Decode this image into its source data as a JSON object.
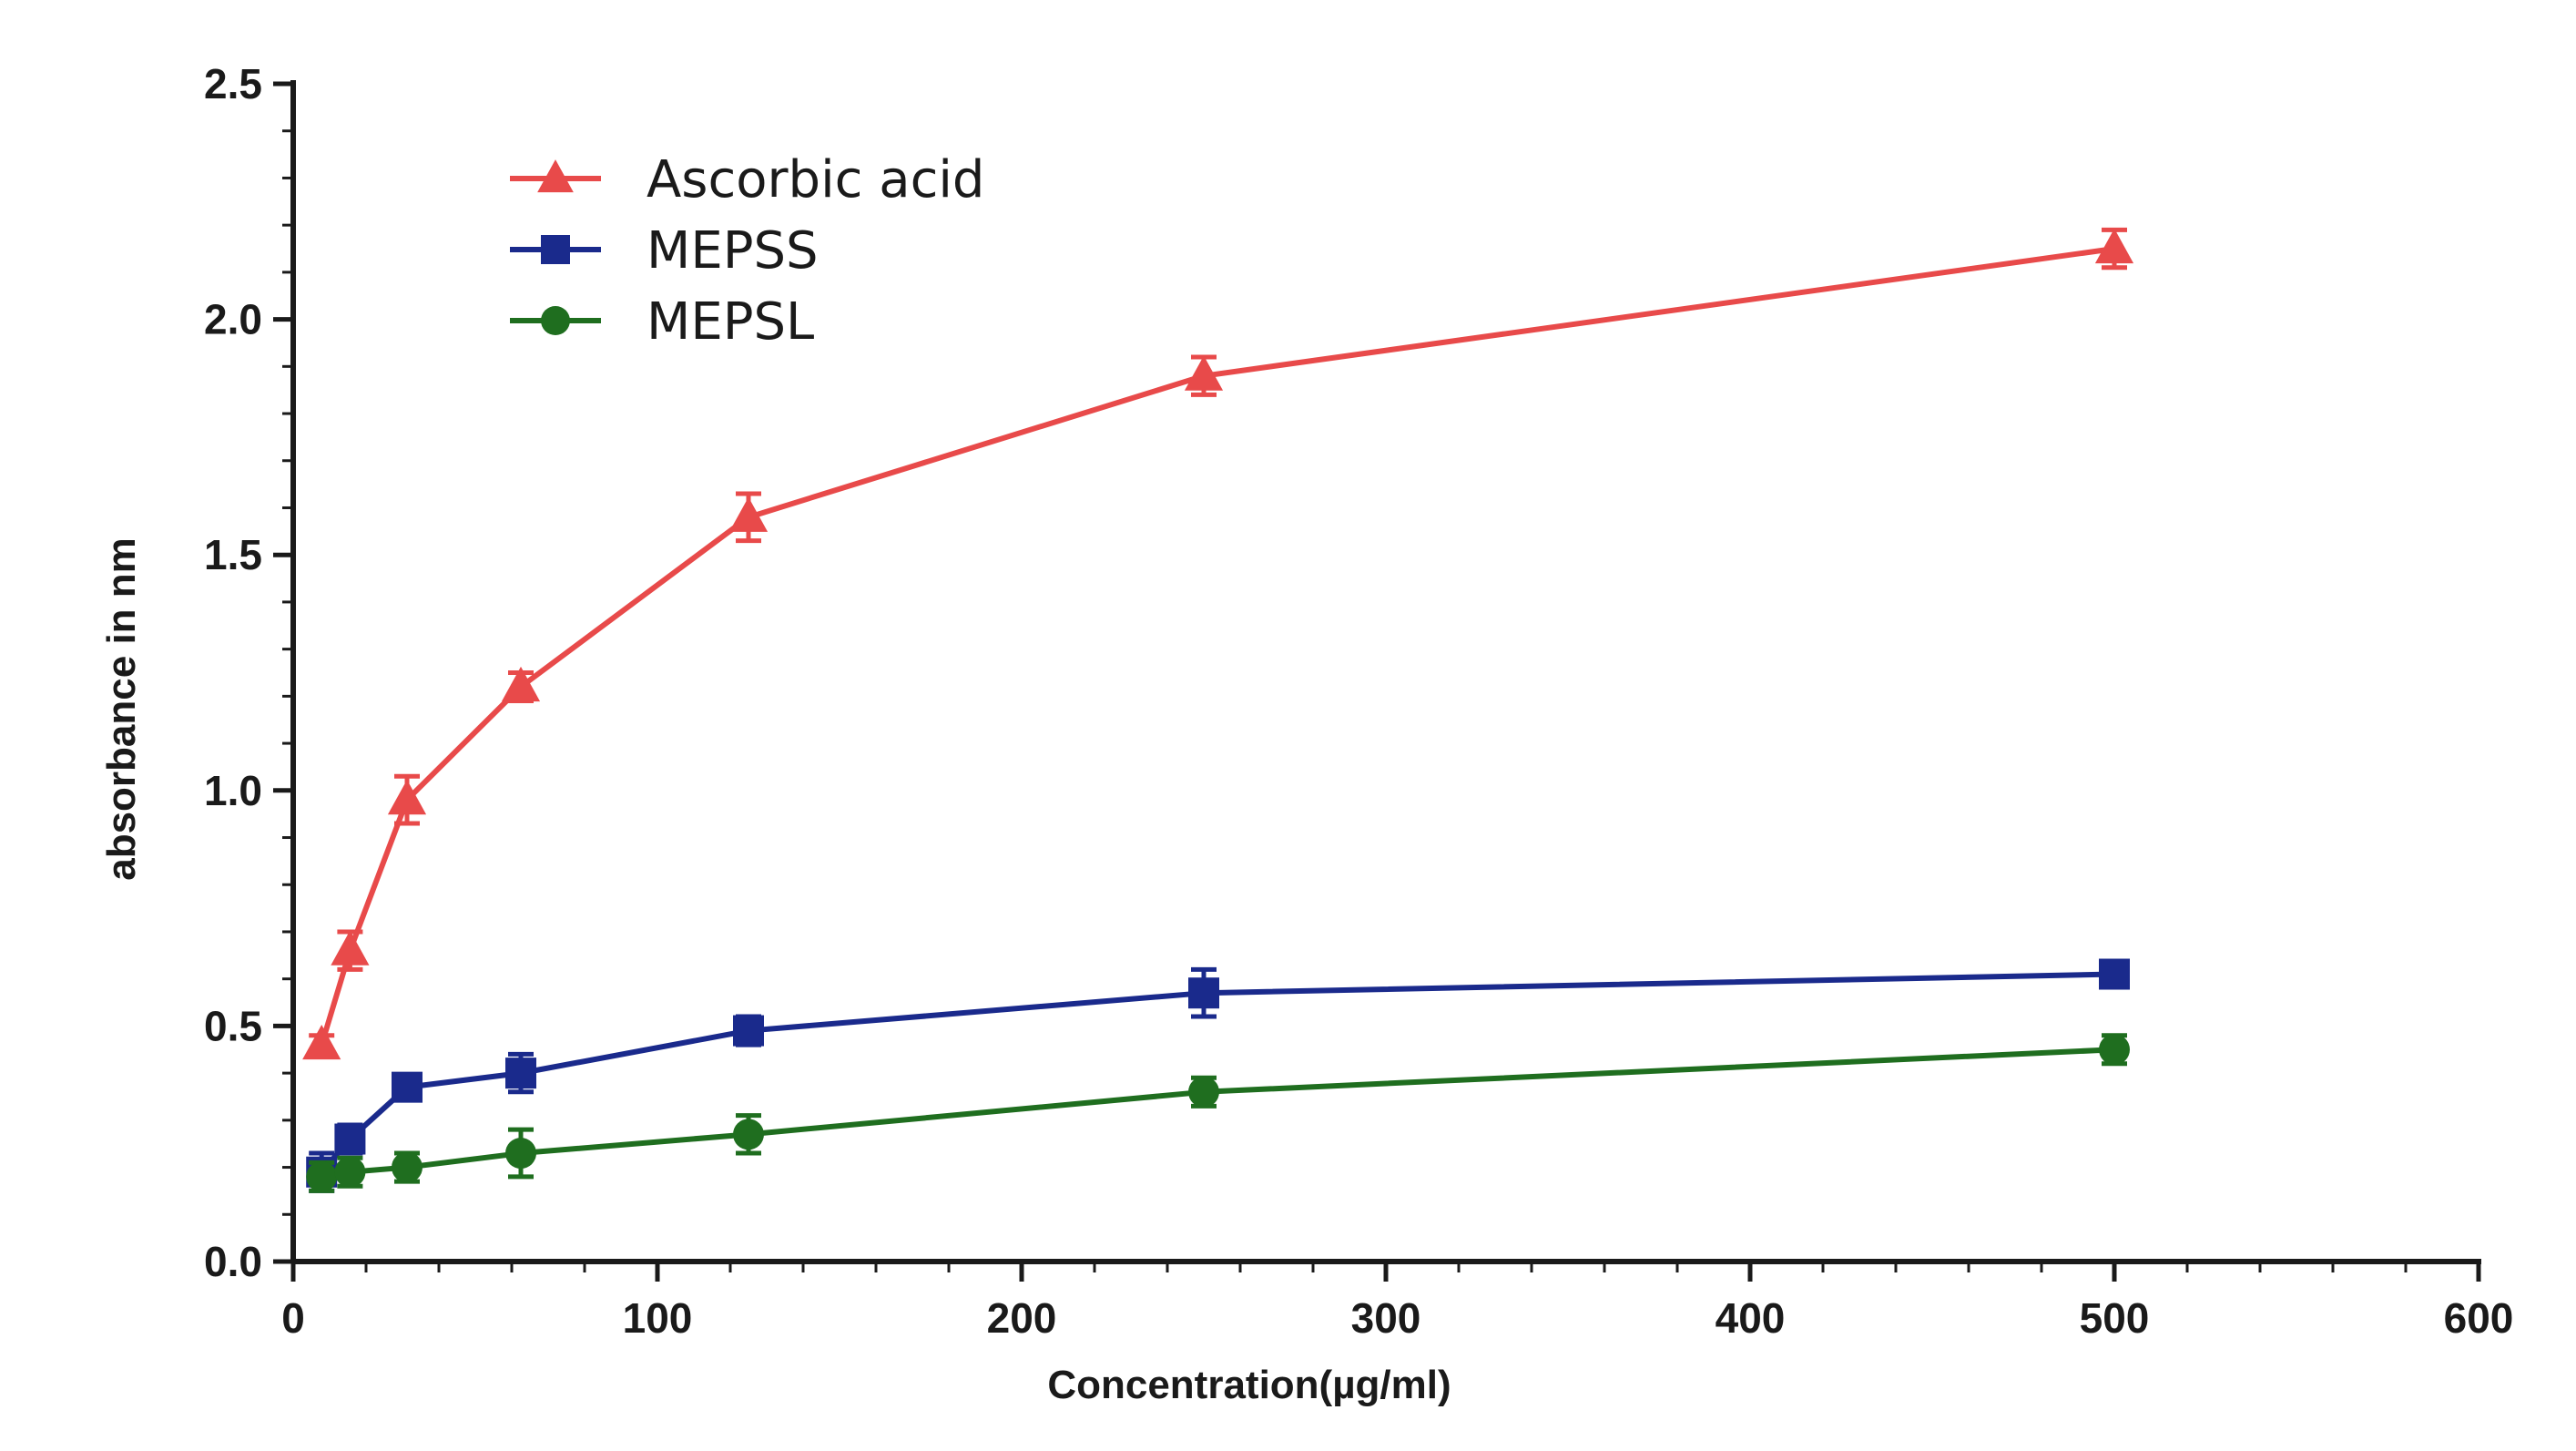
{
  "chart_data": {
    "type": "line",
    "title": "",
    "xlabel": "Concentration(µg/ml)",
    "ylabel": "absorbance in nm",
    "xlim": [
      0,
      600
    ],
    "ylim": [
      0,
      2.5
    ],
    "x_ticks": [
      "0",
      "100",
      "200",
      "300",
      "400",
      "500",
      "600"
    ],
    "y_ticks": [
      "0.0",
      "0.5",
      "1.0",
      "1.5",
      "2.0",
      "2.5"
    ],
    "grid": false,
    "legend_position": "top-left",
    "x": [
      7.8,
      15.6,
      31.25,
      62.5,
      125,
      250,
      500
    ],
    "series": [
      {
        "name": "Ascorbic acid",
        "color": "#e84a4a",
        "marker": "triangle",
        "values": [
          0.46,
          0.66,
          0.98,
          1.22,
          1.58,
          1.88,
          2.15
        ],
        "errors": [
          0.02,
          0.04,
          0.05,
          0.03,
          0.05,
          0.04,
          0.04
        ]
      },
      {
        "name": "MEPSS",
        "color": "#1a2a8c",
        "marker": "square",
        "values": [
          0.19,
          0.26,
          0.37,
          0.4,
          0.49,
          0.57,
          0.61
        ],
        "errors": [
          0.04,
          0.03,
          0.02,
          0.04,
          0.03,
          0.05,
          0.02
        ]
      },
      {
        "name": "MEPSL",
        "color": "#1f6e1f",
        "marker": "circle",
        "values": [
          0.18,
          0.19,
          0.2,
          0.23,
          0.27,
          0.36,
          0.45
        ],
        "errors": [
          0.03,
          0.03,
          0.03,
          0.05,
          0.04,
          0.03,
          0.03
        ]
      }
    ]
  }
}
